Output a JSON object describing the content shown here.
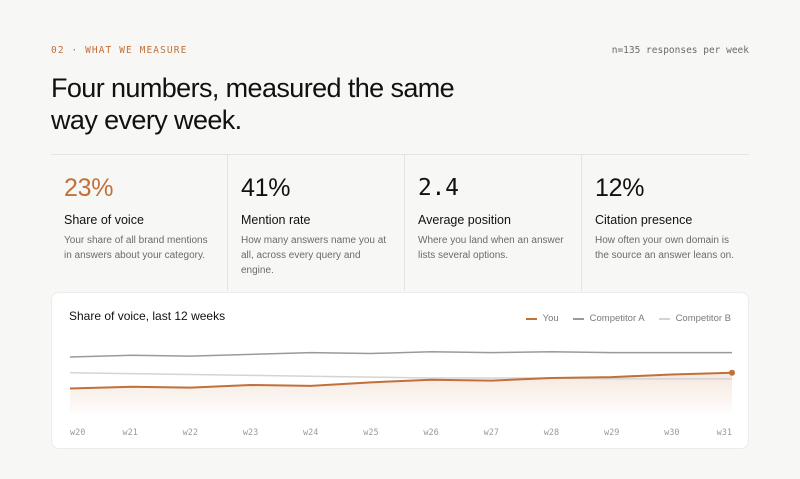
{
  "section": {
    "eyebrow": "02 · WHAT WE MEASURE",
    "meta": "n=135 responses per week",
    "headline": "Four numbers, measured the same way every week."
  },
  "metrics": [
    {
      "value": "23%",
      "title": "Share of voice",
      "desc": "Your share of all brand mentions in answers about your category."
    },
    {
      "value": "41%",
      "title": "Mention rate",
      "desc": "How many answers name you at all, across every query and engine."
    },
    {
      "value": "2.4",
      "title": "Average position",
      "desc": "Where you land when an answer lists several options."
    },
    {
      "value": "12%",
      "title": "Citation presence",
      "desc": "How often your own domain is the source an answer leans on."
    }
  ],
  "colors": {
    "accent": "#c2703a",
    "competitor_a": "#9a9a9a",
    "competitor_b": "#d4d4d2"
  },
  "chart_data": {
    "type": "line",
    "title": "Share of voice, last 12 weeks",
    "categories": [
      "w20",
      "w21",
      "w22",
      "w23",
      "w24",
      "w25",
      "w26",
      "w27",
      "w28",
      "w29",
      "w30",
      "w31"
    ],
    "ylim": [
      0,
      40
    ],
    "series": [
      {
        "name": "You",
        "color": "#c2703a",
        "values": [
          14,
          15,
          14.5,
          16,
          15.5,
          17.5,
          19,
          18.5,
          20,
          20.5,
          22,
          23
        ]
      },
      {
        "name": "Competitor A",
        "color": "#9a9a9a",
        "values": [
          32,
          33,
          32.5,
          33.5,
          34.5,
          34,
          35,
          34.5,
          35,
          34.5,
          34.5,
          34.5
        ]
      },
      {
        "name": "Competitor B",
        "color": "#d4d4d2",
        "values": [
          23,
          22.5,
          22,
          21.5,
          21,
          20.5,
          20,
          20,
          20,
          19.5,
          19.5,
          19.5
        ]
      }
    ],
    "legend": "top-right",
    "grid": false
  }
}
